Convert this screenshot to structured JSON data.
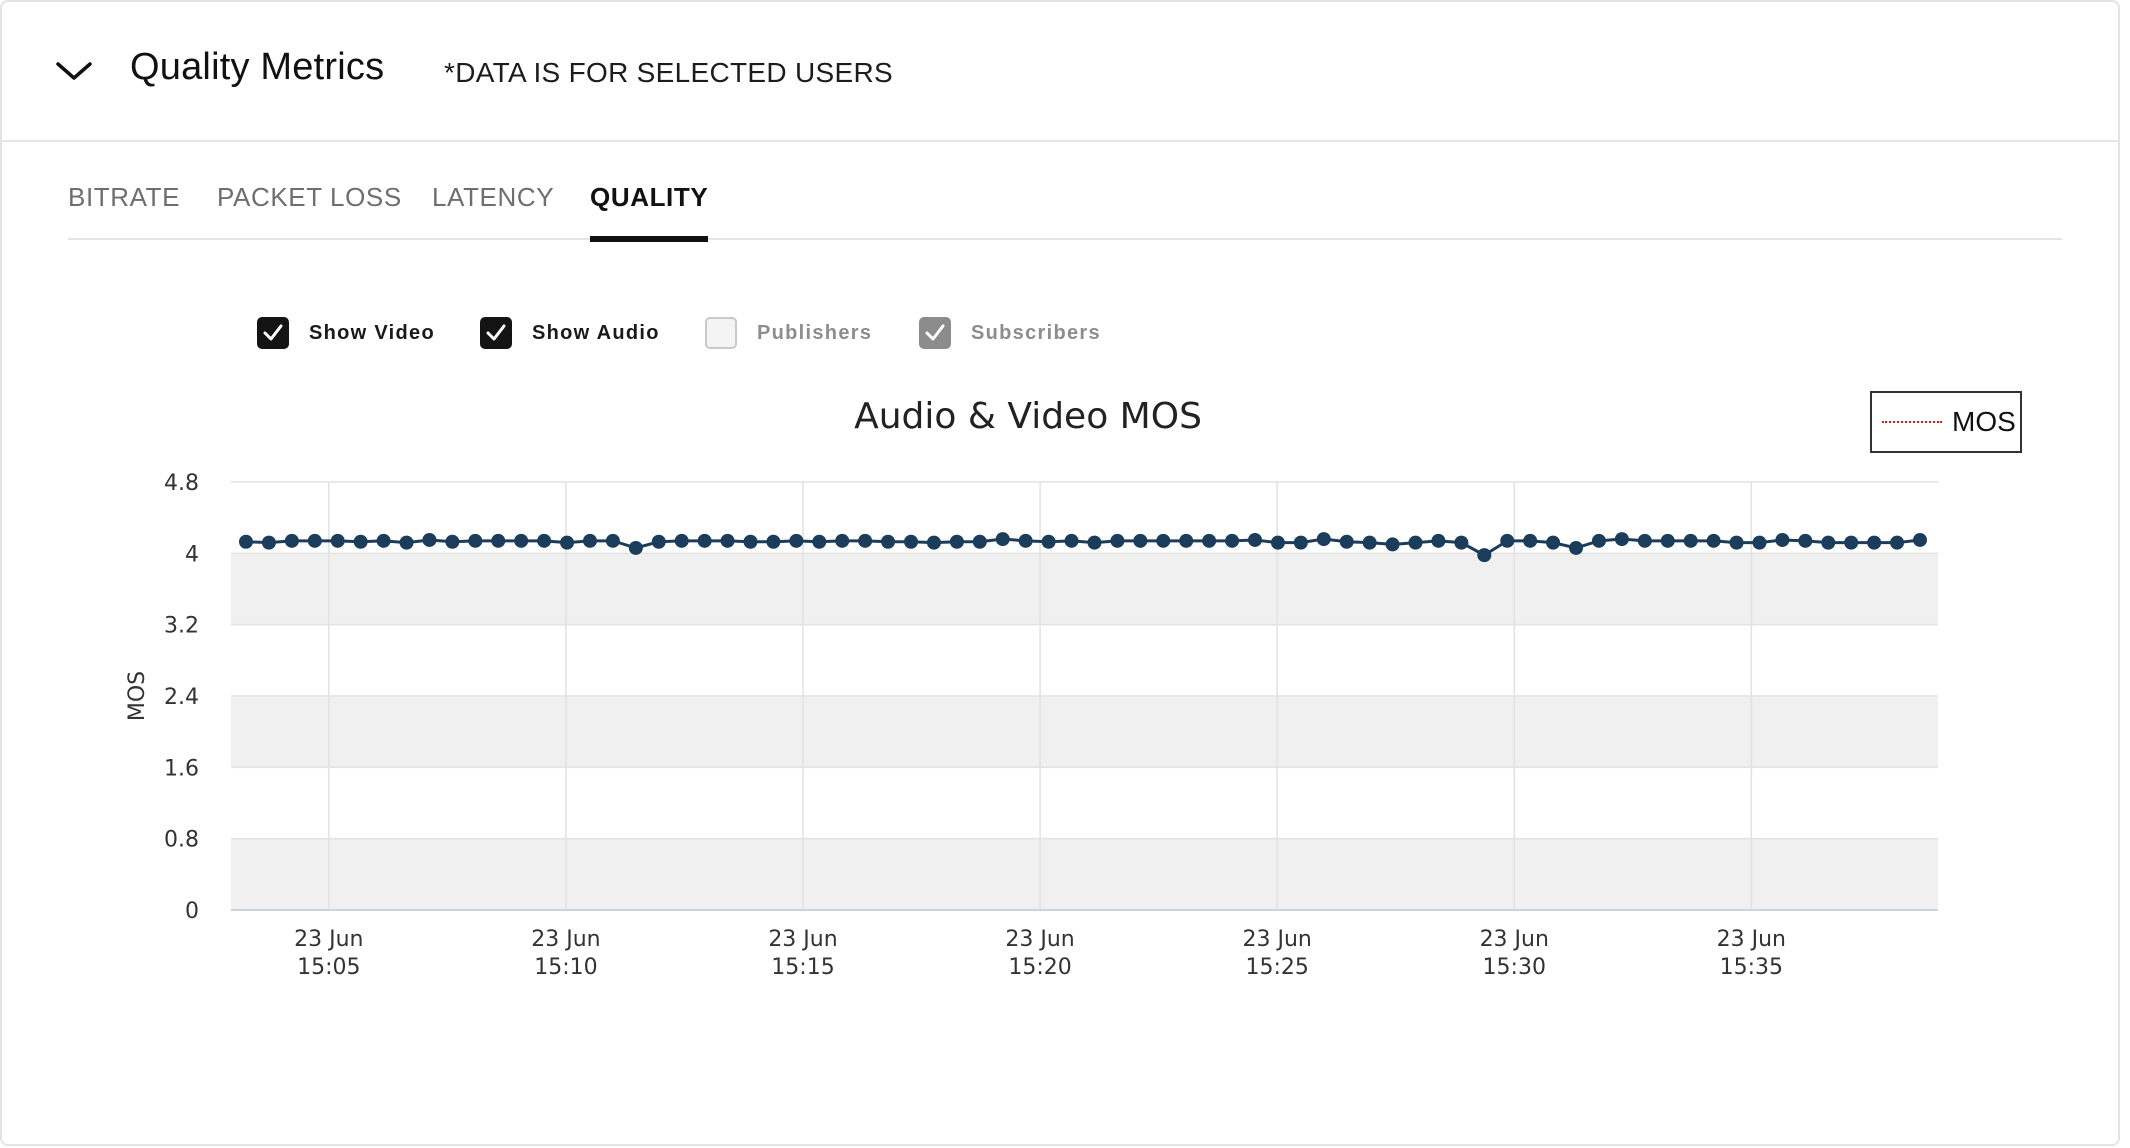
{
  "header": {
    "title": "Quality Metrics",
    "note": "*DATA IS FOR SELECTED USERS"
  },
  "tabs": [
    {
      "label": "BITRATE",
      "active": false
    },
    {
      "label": "PACKET LOSS",
      "active": false
    },
    {
      "label": "LATENCY",
      "active": false
    },
    {
      "label": "QUALITY",
      "active": true
    }
  ],
  "filters": [
    {
      "label": "Show Video",
      "checked": true,
      "enabled": true
    },
    {
      "label": "Show Audio",
      "checked": true,
      "enabled": true
    },
    {
      "label": "Publishers",
      "checked": false,
      "enabled": false
    },
    {
      "label": "Subscribers",
      "checked": true,
      "enabled": false
    }
  ],
  "colors": {
    "series_line": "#1c3c5c",
    "legend_line": "#d21a1a",
    "band": "#f0f0f0",
    "grid": "#e2e2e2"
  },
  "icons": {
    "collapse": "chevron-down-icon",
    "checkbox": "check-icon"
  },
  "chart_data": {
    "type": "line",
    "title": "Audio & Video MOS",
    "ylabel": "MOS",
    "xlabel": "",
    "ylim": [
      0,
      4.8
    ],
    "yticks": [
      "0",
      "0.8",
      "1.6",
      "2.4",
      "3.2",
      "4",
      "4.8"
    ],
    "xticks": [
      {
        "date": "23 Jun",
        "time": "15:05"
      },
      {
        "date": "23 Jun",
        "time": "15:10"
      },
      {
        "date": "23 Jun",
        "time": "15:15"
      },
      {
        "date": "23 Jun",
        "time": "15:20"
      },
      {
        "date": "23 Jun",
        "time": "15:25"
      },
      {
        "date": "23 Jun",
        "time": "15:30"
      },
      {
        "date": "23 Jun",
        "time": "15:35"
      }
    ],
    "legend": {
      "label": "MOS",
      "position": "top-right"
    },
    "grid": true,
    "x_start": "15:03",
    "x_end": "15:39",
    "series": [
      {
        "name": "MOS",
        "x": [
          "15:03",
          "15:03",
          "15:04",
          "15:04",
          "15:05",
          "15:05",
          "15:06",
          "15:06",
          "15:07",
          "15:07",
          "15:08",
          "15:08",
          "15:09",
          "15:09",
          "15:10",
          "15:10",
          "15:11",
          "15:11",
          "15:12",
          "15:12",
          "15:13",
          "15:13",
          "15:14",
          "15:14",
          "15:15",
          "15:15",
          "15:16",
          "15:16",
          "15:17",
          "15:17",
          "15:18",
          "15:18",
          "15:19",
          "15:19",
          "15:20",
          "15:20",
          "15:21",
          "15:21",
          "15:22",
          "15:22",
          "15:23",
          "15:23",
          "15:24",
          "15:24",
          "15:25",
          "15:25",
          "15:26",
          "15:26",
          "15:27",
          "15:27",
          "15:28",
          "15:28",
          "15:29",
          "15:29",
          "15:30",
          "15:30",
          "15:31",
          "15:31",
          "15:32",
          "15:32",
          "15:33",
          "15:33",
          "15:34",
          "15:34",
          "15:35",
          "15:35",
          "15:36",
          "15:36",
          "15:37",
          "15:37",
          "15:38",
          "15:38",
          "15:39",
          "15:39"
        ],
        "y": [
          4.13,
          4.12,
          4.14,
          4.14,
          4.14,
          4.13,
          4.14,
          4.12,
          4.15,
          4.13,
          4.14,
          4.14,
          4.14,
          4.14,
          4.12,
          4.14,
          4.14,
          4.06,
          4.13,
          4.14,
          4.14,
          4.14,
          4.13,
          4.13,
          4.14,
          4.13,
          4.14,
          4.14,
          4.13,
          4.13,
          4.12,
          4.13,
          4.13,
          4.16,
          4.14,
          4.13,
          4.14,
          4.12,
          4.14,
          4.14,
          4.14,
          4.14,
          4.14,
          4.14,
          4.15,
          4.12,
          4.12,
          4.16,
          4.13,
          4.12,
          4.1,
          4.12,
          4.14,
          4.12,
          3.98,
          4.14,
          4.14,
          4.12,
          4.06,
          4.14,
          4.16,
          4.14,
          4.14,
          4.14,
          4.14,
          4.12,
          4.12,
          4.15,
          4.14,
          4.12,
          4.12,
          4.12,
          4.12,
          4.15
        ]
      }
    ]
  }
}
